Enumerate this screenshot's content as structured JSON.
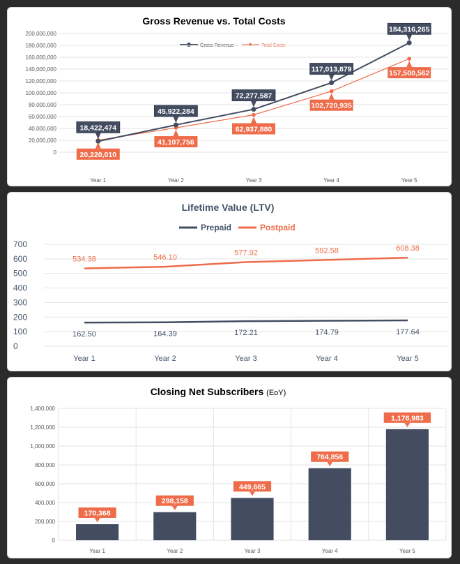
{
  "colors": {
    "revenue": "#434c61",
    "costs": "#ef6c4a",
    "grid": "#e3e3e3",
    "axis_text": "#595959",
    "ltv_axis_text": "#44546a"
  },
  "chart_data": [
    {
      "type": "line",
      "title": "Gross Revenue vs. Total Costs",
      "categories": [
        "Year 1",
        "Year 2",
        "Year 3",
        "Year 4",
        "Year 5"
      ],
      "series": [
        {
          "name": "Gross Revenue",
          "values": [
            18422474,
            45922284,
            72277587,
            117013879,
            184316265
          ],
          "labels": [
            "18,422,474",
            "45,922,284",
            "72,277,587",
            "117,013,879",
            "184,316,265"
          ]
        },
        {
          "name": "Total Costs",
          "values": [
            20220010,
            41107756,
            62937880,
            102720935,
            157500562
          ],
          "labels": [
            "20,220,010",
            "41,107,756",
            "62,937,880",
            "102,720,935",
            "157,500,562"
          ]
        }
      ],
      "ylim": [
        0,
        200000000
      ],
      "ytick_labels": [
        "0",
        "20,000,000",
        "40,000,000",
        "60,000,000",
        "80,000,000",
        "100,000,000",
        "120,000,000",
        "140,000,000",
        "160,000,000",
        "180,000,000",
        "200,000,000"
      ],
      "grid": true,
      "legend": "top"
    },
    {
      "type": "line",
      "title": "Lifetime Value (LTV)",
      "categories": [
        "Year 1",
        "Year 2",
        "Year 3",
        "Year 4",
        "Year 5"
      ],
      "series": [
        {
          "name": "Prepaid",
          "values": [
            162.5,
            164.39,
            172.21,
            174.79,
            177.64
          ],
          "labels": [
            "162.50",
            "164.39",
            "172.21",
            "174.79",
            "177.64"
          ]
        },
        {
          "name": "Postpaid",
          "values": [
            534.38,
            546.1,
            577.92,
            592.58,
            608.38
          ],
          "labels": [
            "534.38",
            "546.10",
            "577.92",
            "592.58",
            "608.38"
          ]
        }
      ],
      "ylim": [
        0,
        700
      ],
      "ytick_labels": [
        "0",
        "100",
        "200",
        "300",
        "400",
        "500",
        "600",
        "700"
      ],
      "grid": true,
      "legend": "top"
    },
    {
      "type": "bar",
      "title": "Closing Net Subscribers",
      "title_suffix": "(EoY)",
      "categories": [
        "Year 1",
        "Year 2",
        "Year 3",
        "Year 4",
        "Year 5"
      ],
      "values": [
        170368,
        298158,
        449665,
        764856,
        1178983
      ],
      "labels": [
        "170,368",
        "298,158",
        "449,665",
        "764,856",
        "1,178,983"
      ],
      "ylim": [
        0,
        1400000
      ],
      "ytick_labels": [
        "0",
        "200,000",
        "400,000",
        "600,000",
        "800,000",
        "1,000,000",
        "1,200,000",
        "1,400,000"
      ],
      "grid": true
    }
  ]
}
